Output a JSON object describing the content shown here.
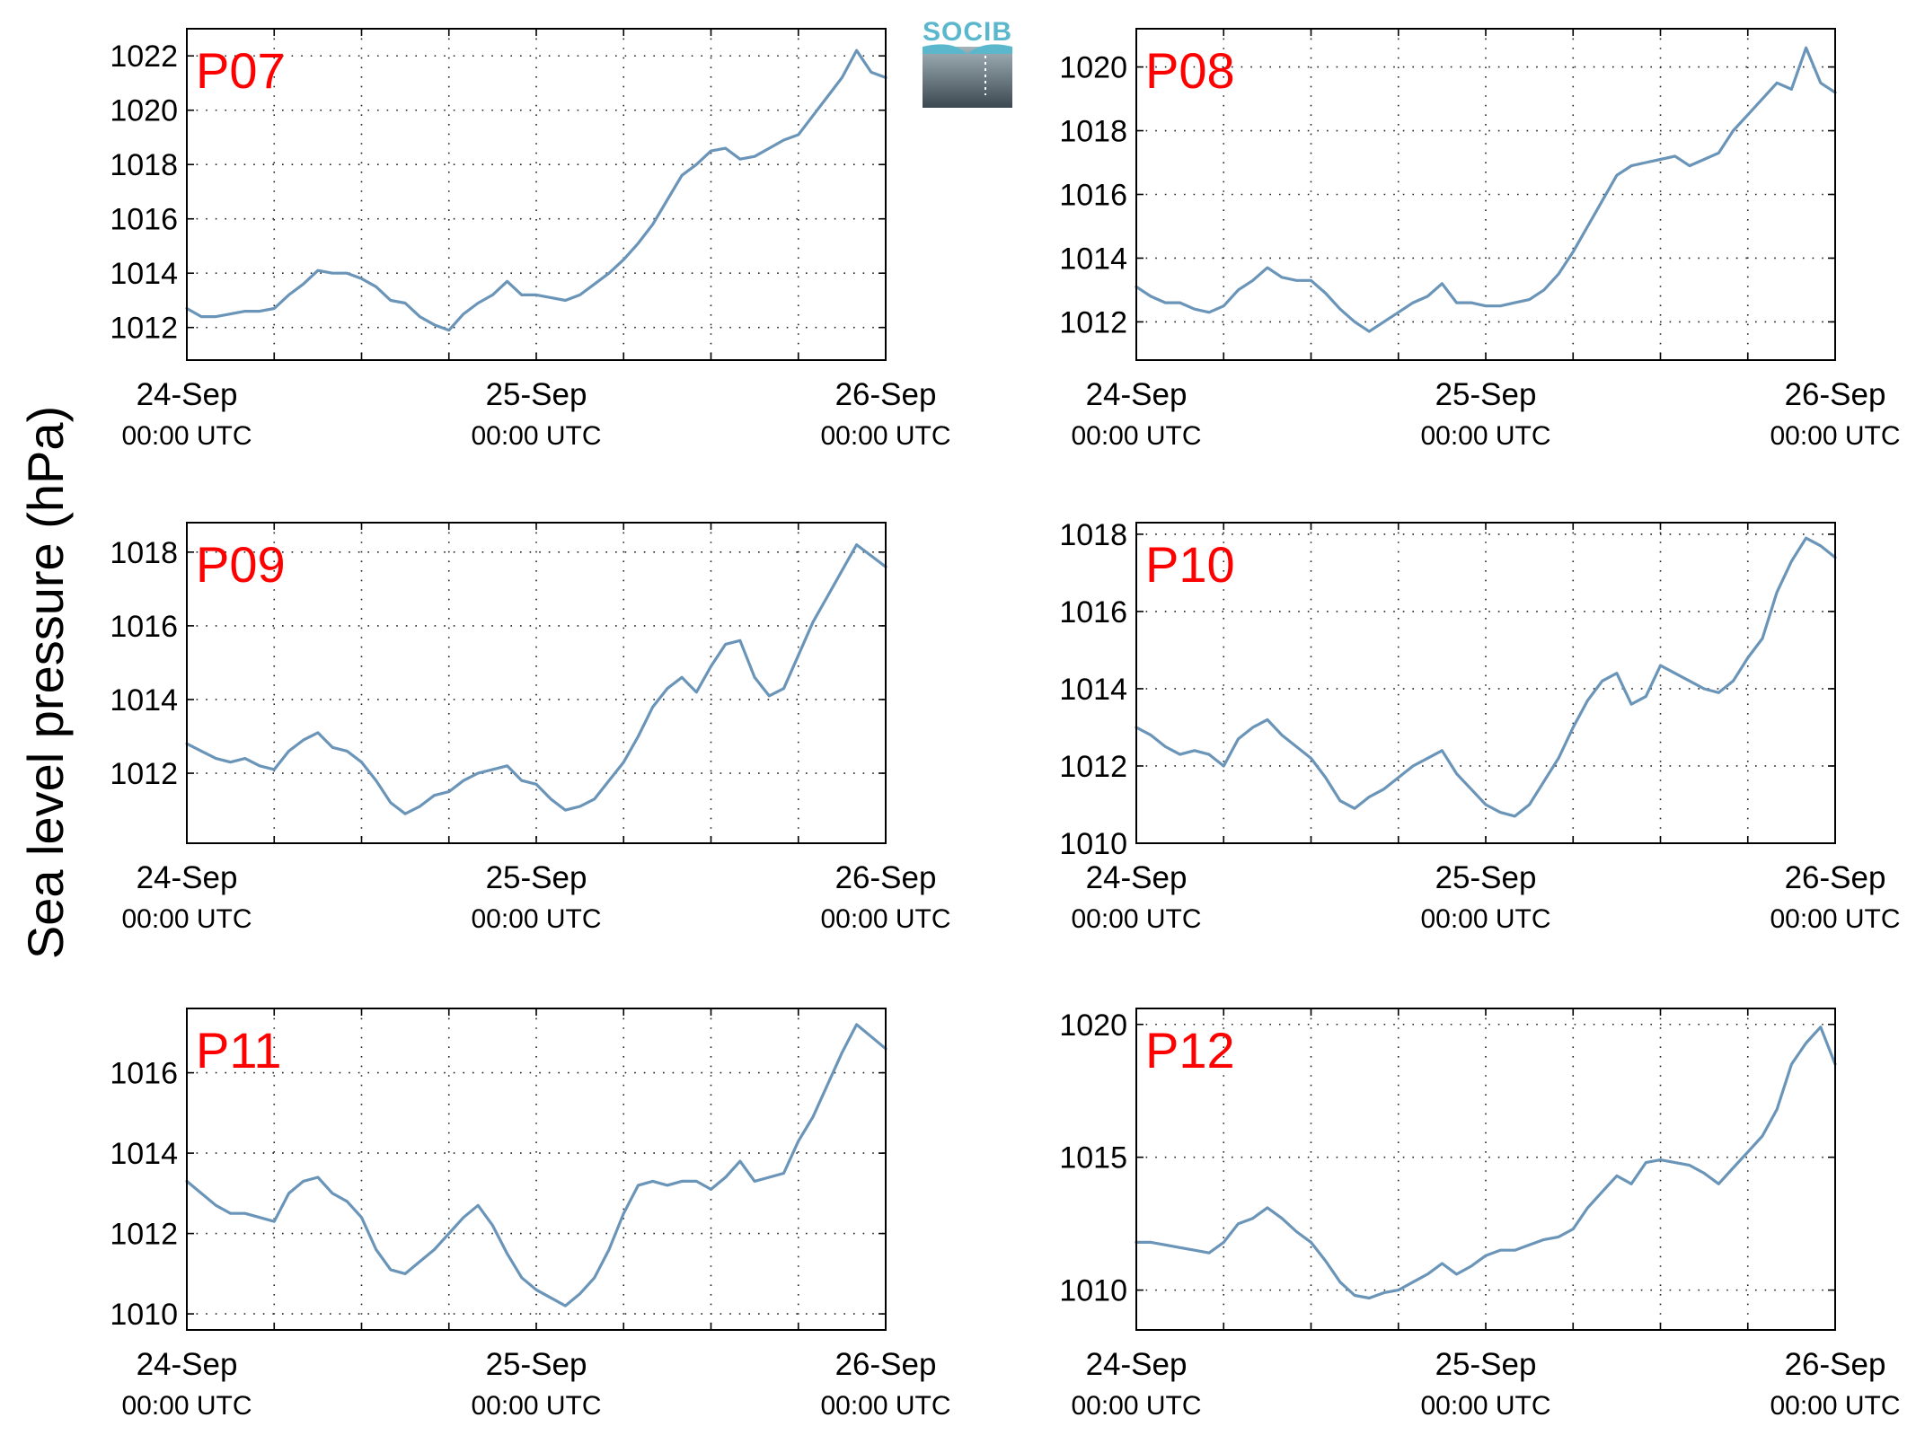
{
  "figure": {
    "ylabel": "Sea level pressure (hPa)",
    "logo": {
      "text": "SOCIB",
      "text_color": "#5bb8cc",
      "gradient_top": "#a4b3ba",
      "gradient_bottom": "#3b4850"
    },
    "line_color": "#6a95b8",
    "label_color": "#ff0000"
  },
  "chart_data": [
    {
      "type": "line",
      "title": "P07",
      "xlim": [
        0,
        48
      ],
      "ylim": [
        1010.8,
        1023.0
      ],
      "yticks": [
        1012,
        1014,
        1016,
        1018,
        1020,
        1022
      ],
      "xticks": [
        {
          "x": 0,
          "date": "24-Sep",
          "time": "00:00 UTC"
        },
        {
          "x": 24,
          "date": "25-Sep",
          "time": "00:00 UTC"
        },
        {
          "x": 48,
          "date": "26-Sep",
          "time": "00:00 UTC"
        }
      ],
      "xgrid": [
        6,
        12,
        18,
        24,
        30,
        36,
        42
      ],
      "grid": true,
      "x": [
        0,
        1,
        2,
        3,
        4,
        5,
        6,
        7,
        8,
        9,
        10,
        11,
        12,
        13,
        14,
        15,
        16,
        17,
        18,
        19,
        20,
        21,
        22,
        23,
        24,
        25,
        26,
        27,
        28,
        29,
        30,
        31,
        32,
        33,
        34,
        35,
        36,
        37,
        38,
        39,
        40,
        41,
        42,
        43,
        44,
        45,
        46,
        47,
        48
      ],
      "y": [
        1012.7,
        1012.4,
        1012.4,
        1012.5,
        1012.6,
        1012.6,
        1012.7,
        1013.2,
        1013.6,
        1014.1,
        1014.0,
        1014.0,
        1013.8,
        1013.5,
        1013.0,
        1012.9,
        1012.4,
        1012.1,
        1011.9,
        1012.5,
        1012.9,
        1013.2,
        1013.7,
        1013.2,
        1013.2,
        1013.1,
        1013.0,
        1013.2,
        1013.6,
        1014.0,
        1014.5,
        1015.1,
        1015.8,
        1016.7,
        1017.6,
        1018.0,
        1018.5,
        1018.6,
        1018.2,
        1018.3,
        1018.6,
        1018.9,
        1019.1,
        1019.8,
        1020.5,
        1021.2,
        1022.2,
        1021.4,
        1021.2
      ]
    },
    {
      "type": "line",
      "title": "P08",
      "xlim": [
        0,
        48
      ],
      "ylim": [
        1010.8,
        1021.2
      ],
      "yticks": [
        1012,
        1014,
        1016,
        1018,
        1020
      ],
      "xticks": [
        {
          "x": 0,
          "date": "24-Sep",
          "time": "00:00 UTC"
        },
        {
          "x": 24,
          "date": "25-Sep",
          "time": "00:00 UTC"
        },
        {
          "x": 48,
          "date": "26-Sep",
          "time": "00:00 UTC"
        }
      ],
      "xgrid": [
        6,
        12,
        18,
        24,
        30,
        36,
        42
      ],
      "grid": true,
      "x": [
        0,
        1,
        2,
        3,
        4,
        5,
        6,
        7,
        8,
        9,
        10,
        11,
        12,
        13,
        14,
        15,
        16,
        17,
        18,
        19,
        20,
        21,
        22,
        23,
        24,
        25,
        26,
        27,
        28,
        29,
        30,
        31,
        32,
        33,
        34,
        35,
        36,
        37,
        38,
        39,
        40,
        41,
        42,
        43,
        44,
        45,
        46,
        47,
        48
      ],
      "y": [
        1013.1,
        1012.8,
        1012.6,
        1012.6,
        1012.4,
        1012.3,
        1012.5,
        1013.0,
        1013.3,
        1013.7,
        1013.4,
        1013.3,
        1013.3,
        1012.9,
        1012.4,
        1012.0,
        1011.7,
        1012.0,
        1012.3,
        1012.6,
        1012.8,
        1013.2,
        1012.6,
        1012.6,
        1012.5,
        1012.5,
        1012.6,
        1012.7,
        1013.0,
        1013.5,
        1014.2,
        1015.0,
        1015.8,
        1016.6,
        1016.9,
        1017.0,
        1017.1,
        1017.2,
        1016.9,
        1017.1,
        1017.3,
        1018.0,
        1018.5,
        1019.0,
        1019.5,
        1019.3,
        1020.6,
        1019.5,
        1019.2
      ]
    },
    {
      "type": "line",
      "title": "P09",
      "xlim": [
        0,
        48
      ],
      "ylim": [
        1010.1,
        1018.8
      ],
      "yticks": [
        1012,
        1014,
        1016,
        1018
      ],
      "xticks": [
        {
          "x": 0,
          "date": "24-Sep",
          "time": "00:00 UTC"
        },
        {
          "x": 24,
          "date": "25-Sep",
          "time": "00:00 UTC"
        },
        {
          "x": 48,
          "date": "26-Sep",
          "time": "00:00 UTC"
        }
      ],
      "xgrid": [
        6,
        12,
        18,
        24,
        30,
        36,
        42
      ],
      "grid": true,
      "x": [
        0,
        1,
        2,
        3,
        4,
        5,
        6,
        7,
        8,
        9,
        10,
        11,
        12,
        13,
        14,
        15,
        16,
        17,
        18,
        19,
        20,
        21,
        22,
        23,
        24,
        25,
        26,
        27,
        28,
        29,
        30,
        31,
        32,
        33,
        34,
        35,
        36,
        37,
        38,
        39,
        40,
        41,
        42,
        43,
        44,
        45,
        46,
        47,
        48
      ],
      "y": [
        1012.8,
        1012.6,
        1012.4,
        1012.3,
        1012.4,
        1012.2,
        1012.1,
        1012.6,
        1012.9,
        1013.1,
        1012.7,
        1012.6,
        1012.3,
        1011.8,
        1011.2,
        1010.9,
        1011.1,
        1011.4,
        1011.5,
        1011.8,
        1012.0,
        1012.1,
        1012.2,
        1011.8,
        1011.7,
        1011.3,
        1011.0,
        1011.1,
        1011.3,
        1011.8,
        1012.3,
        1013.0,
        1013.8,
        1014.3,
        1014.6,
        1014.2,
        1014.9,
        1015.5,
        1015.6,
        1014.6,
        1014.1,
        1014.3,
        1015.2,
        1016.1,
        1016.8,
        1017.5,
        1018.2,
        1017.9,
        1017.6
      ]
    },
    {
      "type": "line",
      "title": "P10",
      "xlim": [
        0,
        48
      ],
      "ylim": [
        1010.0,
        1018.3
      ],
      "yticks": [
        1010,
        1012,
        1014,
        1016,
        1018
      ],
      "xticks": [
        {
          "x": 0,
          "date": "24-Sep",
          "time": "00:00 UTC"
        },
        {
          "x": 24,
          "date": "25-Sep",
          "time": "00:00 UTC"
        },
        {
          "x": 48,
          "date": "26-Sep",
          "time": "00:00 UTC"
        }
      ],
      "xgrid": [
        6,
        12,
        18,
        24,
        30,
        36,
        42
      ],
      "grid": true,
      "x": [
        0,
        1,
        2,
        3,
        4,
        5,
        6,
        7,
        8,
        9,
        10,
        11,
        12,
        13,
        14,
        15,
        16,
        17,
        18,
        19,
        20,
        21,
        22,
        23,
        24,
        25,
        26,
        27,
        28,
        29,
        30,
        31,
        32,
        33,
        34,
        35,
        36,
        37,
        38,
        39,
        40,
        41,
        42,
        43,
        44,
        45,
        46,
        47,
        48
      ],
      "y": [
        1013.0,
        1012.8,
        1012.5,
        1012.3,
        1012.4,
        1012.3,
        1012.0,
        1012.7,
        1013.0,
        1013.2,
        1012.8,
        1012.5,
        1012.2,
        1011.7,
        1011.1,
        1010.9,
        1011.2,
        1011.4,
        1011.7,
        1012.0,
        1012.2,
        1012.4,
        1011.8,
        1011.4,
        1011.0,
        1010.8,
        1010.7,
        1011.0,
        1011.6,
        1012.2,
        1013.0,
        1013.7,
        1014.2,
        1014.4,
        1013.6,
        1013.8,
        1014.6,
        1014.4,
        1014.2,
        1014.0,
        1013.9,
        1014.2,
        1014.8,
        1015.3,
        1016.5,
        1017.3,
        1017.9,
        1017.7,
        1017.4
      ]
    },
    {
      "type": "line",
      "title": "P11",
      "xlim": [
        0,
        48
      ],
      "ylim": [
        1009.6,
        1017.6
      ],
      "yticks": [
        1010,
        1012,
        1014,
        1016
      ],
      "xticks": [
        {
          "x": 0,
          "date": "24-Sep",
          "time": "00:00 UTC"
        },
        {
          "x": 24,
          "date": "25-Sep",
          "time": "00:00 UTC"
        },
        {
          "x": 48,
          "date": "26-Sep",
          "time": "00:00 UTC"
        }
      ],
      "xgrid": [
        6,
        12,
        18,
        24,
        30,
        36,
        42
      ],
      "grid": true,
      "x": [
        0,
        1,
        2,
        3,
        4,
        5,
        6,
        7,
        8,
        9,
        10,
        11,
        12,
        13,
        14,
        15,
        16,
        17,
        18,
        19,
        20,
        21,
        22,
        23,
        24,
        25,
        26,
        27,
        28,
        29,
        30,
        31,
        32,
        33,
        34,
        35,
        36,
        37,
        38,
        39,
        40,
        41,
        42,
        43,
        44,
        45,
        46,
        47,
        48
      ],
      "y": [
        1013.3,
        1013.0,
        1012.7,
        1012.5,
        1012.5,
        1012.4,
        1012.3,
        1013.0,
        1013.3,
        1013.4,
        1013.0,
        1012.8,
        1012.4,
        1011.6,
        1011.1,
        1011.0,
        1011.3,
        1011.6,
        1012.0,
        1012.4,
        1012.7,
        1012.2,
        1011.5,
        1010.9,
        1010.6,
        1010.4,
        1010.2,
        1010.5,
        1010.9,
        1011.6,
        1012.5,
        1013.2,
        1013.3,
        1013.2,
        1013.3,
        1013.3,
        1013.1,
        1013.4,
        1013.8,
        1013.3,
        1013.4,
        1013.5,
        1014.3,
        1014.9,
        1015.7,
        1016.5,
        1017.2,
        1016.9,
        1016.6
      ]
    },
    {
      "type": "line",
      "title": "P12",
      "xlim": [
        0,
        48
      ],
      "ylim": [
        1008.5,
        1020.6
      ],
      "yticks": [
        1010,
        1015,
        1020
      ],
      "xticks": [
        {
          "x": 0,
          "date": "24-Sep",
          "time": "00:00 UTC"
        },
        {
          "x": 24,
          "date": "25-Sep",
          "time": "00:00 UTC"
        },
        {
          "x": 48,
          "date": "26-Sep",
          "time": "00:00 UTC"
        }
      ],
      "xgrid": [
        6,
        12,
        18,
        24,
        30,
        36,
        42
      ],
      "grid": true,
      "x": [
        0,
        1,
        2,
        3,
        4,
        5,
        6,
        7,
        8,
        9,
        10,
        11,
        12,
        13,
        14,
        15,
        16,
        17,
        18,
        19,
        20,
        21,
        22,
        23,
        24,
        25,
        26,
        27,
        28,
        29,
        30,
        31,
        32,
        33,
        34,
        35,
        36,
        37,
        38,
        39,
        40,
        41,
        42,
        43,
        44,
        45,
        46,
        47,
        48
      ],
      "y": [
        1011.8,
        1011.8,
        1011.7,
        1011.6,
        1011.5,
        1011.4,
        1011.8,
        1012.5,
        1012.7,
        1013.1,
        1012.7,
        1012.2,
        1011.8,
        1011.1,
        1010.3,
        1009.8,
        1009.7,
        1009.9,
        1010.0,
        1010.3,
        1010.6,
        1011.0,
        1010.6,
        1010.9,
        1011.3,
        1011.5,
        1011.5,
        1011.7,
        1011.9,
        1012.0,
        1012.3,
        1013.1,
        1013.7,
        1014.3,
        1014.0,
        1014.8,
        1014.9,
        1014.8,
        1014.7,
        1014.4,
        1014.0,
        1014.6,
        1015.2,
        1015.8,
        1016.8,
        1018.5,
        1019.3,
        1019.9,
        1018.5
      ]
    }
  ]
}
